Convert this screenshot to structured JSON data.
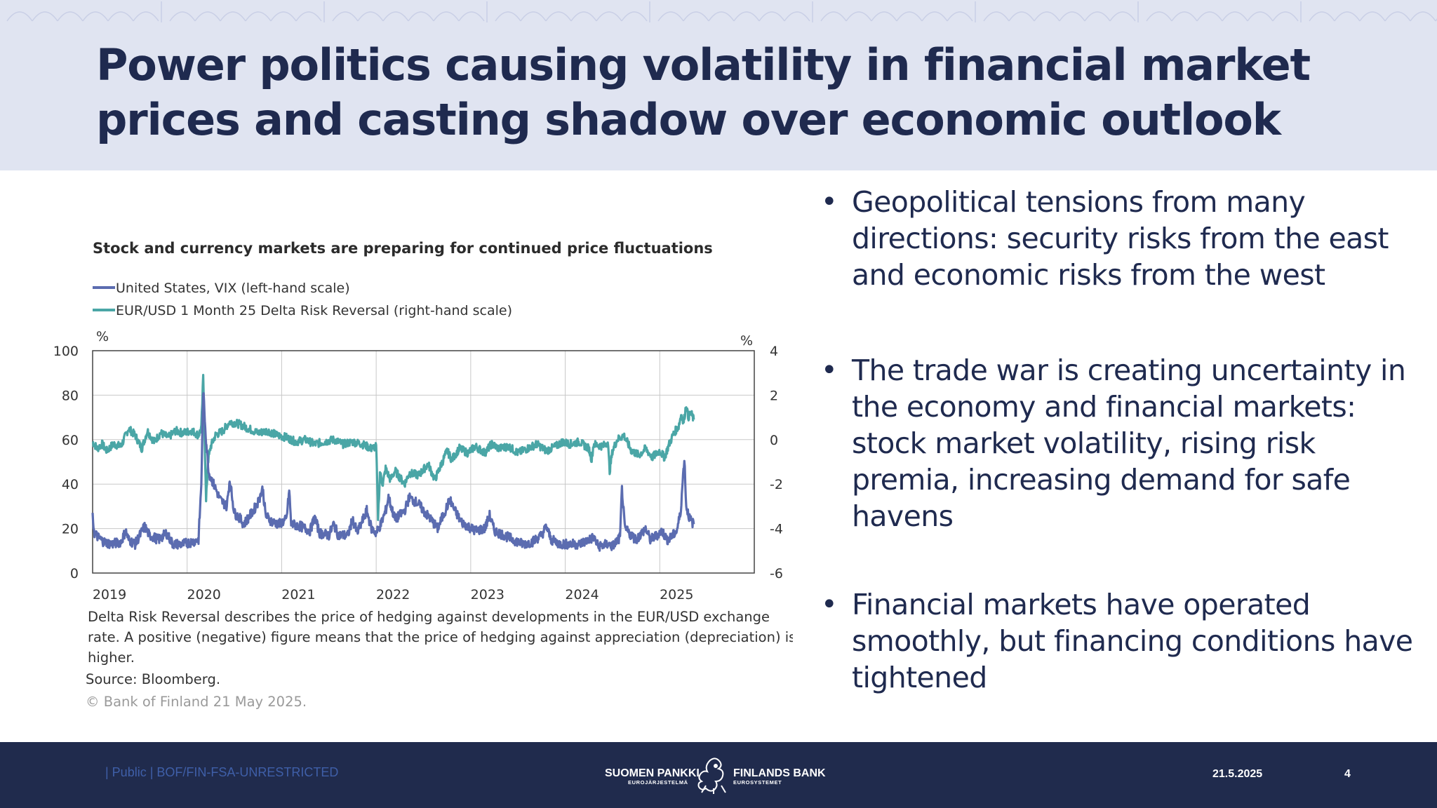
{
  "slide": {
    "title": "Power politics causing volatility in financial market prices and casting shadow over economic outlook",
    "bullets": [
      "Geopolitical tensions from many directions: security risks from the east and economic risks from the west",
      "The trade war is creating uncertainty in the economy and financial markets: stock market volatility, rising risk premia, increasing demand for safe havens",
      "Financial markets have operated smoothly, but financing conditions have tightened"
    ],
    "bullet_glyph": "•"
  },
  "chart_data": {
    "type": "line",
    "title": "Stock and currency markets are preparing for continued price fluctuations",
    "left_unit": "%",
    "right_unit": "%",
    "left_ylim": [
      0,
      100
    ],
    "right_ylim": [
      -6,
      4
    ],
    "left_ticks": [
      "100",
      "80",
      "60",
      "40",
      "20",
      "0"
    ],
    "right_ticks": [
      "4",
      "2",
      "0",
      "-2",
      "-4",
      "-6"
    ],
    "x_ticks": [
      "2019",
      "2020",
      "2021",
      "2022",
      "2023",
      "2024",
      "2025"
    ],
    "xlim": [
      2019,
      2026
    ],
    "grid": true,
    "series": [
      {
        "name": "United States, VIX (left-hand scale)",
        "axis": "left",
        "color": "#5b6cb0",
        "points": [
          [
            2019.0,
            25
          ],
          [
            2019.02,
            18
          ],
          [
            2019.06,
            16
          ],
          [
            2019.12,
            14
          ],
          [
            2019.2,
            13
          ],
          [
            2019.3,
            14
          ],
          [
            2019.35,
            19
          ],
          [
            2019.38,
            15
          ],
          [
            2019.45,
            13
          ],
          [
            2019.55,
            21
          ],
          [
            2019.6,
            17
          ],
          [
            2019.7,
            15
          ],
          [
            2019.78,
            18
          ],
          [
            2019.85,
            13
          ],
          [
            2019.95,
            13
          ],
          [
            2020.05,
            14
          ],
          [
            2020.12,
            15
          ],
          [
            2020.15,
            40
          ],
          [
            2020.17,
            82
          ],
          [
            2020.2,
            60
          ],
          [
            2020.23,
            45
          ],
          [
            2020.28,
            40
          ],
          [
            2020.35,
            33
          ],
          [
            2020.42,
            30
          ],
          [
            2020.45,
            42
          ],
          [
            2020.5,
            27
          ],
          [
            2020.55,
            25
          ],
          [
            2020.6,
            22
          ],
          [
            2020.65,
            25
          ],
          [
            2020.7,
            28
          ],
          [
            2020.75,
            32
          ],
          [
            2020.8,
            38
          ],
          [
            2020.83,
            26
          ],
          [
            2020.9,
            23
          ],
          [
            2020.97,
            22
          ],
          [
            2021.05,
            24
          ],
          [
            2021.08,
            37
          ],
          [
            2021.1,
            22
          ],
          [
            2021.2,
            21
          ],
          [
            2021.3,
            19
          ],
          [
            2021.35,
            25
          ],
          [
            2021.4,
            18
          ],
          [
            2021.5,
            17
          ],
          [
            2021.55,
            22
          ],
          [
            2021.6,
            17
          ],
          [
            2021.7,
            17
          ],
          [
            2021.75,
            24
          ],
          [
            2021.8,
            18
          ],
          [
            2021.9,
            28
          ],
          [
            2021.95,
            20
          ],
          [
            2022.0,
            18
          ],
          [
            2022.05,
            22
          ],
          [
            2022.1,
            28
          ],
          [
            2022.13,
            34
          ],
          [
            2022.2,
            24
          ],
          [
            2022.3,
            28
          ],
          [
            2022.35,
            34
          ],
          [
            2022.45,
            31
          ],
          [
            2022.5,
            28
          ],
          [
            2022.6,
            23
          ],
          [
            2022.65,
            20
          ],
          [
            2022.7,
            25
          ],
          [
            2022.78,
            33
          ],
          [
            2022.82,
            29
          ],
          [
            2022.9,
            23
          ],
          [
            2022.97,
            21
          ],
          [
            2023.05,
            19
          ],
          [
            2023.15,
            20
          ],
          [
            2023.2,
            26
          ],
          [
            2023.25,
            19
          ],
          [
            2023.35,
            17
          ],
          [
            2023.45,
            15
          ],
          [
            2023.55,
            13
          ],
          [
            2023.65,
            14
          ],
          [
            2023.75,
            17
          ],
          [
            2023.8,
            21
          ],
          [
            2023.85,
            15
          ],
          [
            2023.95,
            13
          ],
          [
            2024.05,
            13
          ],
          [
            2024.15,
            13
          ],
          [
            2024.25,
            15
          ],
          [
            2024.3,
            16
          ],
          [
            2024.35,
            12
          ],
          [
            2024.45,
            13
          ],
          [
            2024.5,
            12
          ],
          [
            2024.58,
            16
          ],
          [
            2024.6,
            38
          ],
          [
            2024.63,
            20
          ],
          [
            2024.7,
            17
          ],
          [
            2024.75,
            15
          ],
          [
            2024.85,
            20
          ],
          [
            2024.9,
            15
          ],
          [
            2024.97,
            17
          ],
          [
            2025.02,
            19
          ],
          [
            2025.08,
            15
          ],
          [
            2025.12,
            16
          ],
          [
            2025.18,
            19
          ],
          [
            2025.22,
            27
          ],
          [
            2025.26,
            52
          ],
          [
            2025.28,
            30
          ],
          [
            2025.32,
            24
          ],
          [
            2025.36,
            22
          ]
        ]
      },
      {
        "name": "EUR/USD 1 Month 25 Delta Risk Reversal (right-hand scale)",
        "axis": "right",
        "color": "#4aa6a6",
        "points": [
          [
            2019.0,
            -0.1
          ],
          [
            2019.05,
            -0.4
          ],
          [
            2019.1,
            -0.2
          ],
          [
            2019.15,
            -0.5
          ],
          [
            2019.22,
            -0.2
          ],
          [
            2019.3,
            -0.3
          ],
          [
            2019.38,
            0.5
          ],
          [
            2019.45,
            0.2
          ],
          [
            2019.52,
            -0.4
          ],
          [
            2019.58,
            0.4
          ],
          [
            2019.65,
            -0.1
          ],
          [
            2019.72,
            0.3
          ],
          [
            2019.8,
            0.1
          ],
          [
            2019.88,
            0.4
          ],
          [
            2019.95,
            0.3
          ],
          [
            2020.05,
            0.4
          ],
          [
            2020.12,
            0.2
          ],
          [
            2020.15,
            0.5
          ],
          [
            2020.17,
            2.8
          ],
          [
            2020.18,
            1.2
          ],
          [
            2020.2,
            -2.8
          ],
          [
            2020.22,
            -1.0
          ],
          [
            2020.25,
            -0.3
          ],
          [
            2020.3,
            0.2
          ],
          [
            2020.38,
            0.4
          ],
          [
            2020.45,
            0.8
          ],
          [
            2020.55,
            0.7
          ],
          [
            2020.65,
            0.5
          ],
          [
            2020.75,
            0.3
          ],
          [
            2020.85,
            0.4
          ],
          [
            2020.95,
            0.2
          ],
          [
            2021.05,
            0.1
          ],
          [
            2021.15,
            -0.1
          ],
          [
            2021.25,
            0.0
          ],
          [
            2021.35,
            -0.2
          ],
          [
            2021.45,
            -0.1
          ],
          [
            2021.55,
            0.0
          ],
          [
            2021.65,
            -0.2
          ],
          [
            2021.75,
            -0.1
          ],
          [
            2021.85,
            -0.2
          ],
          [
            2021.95,
            -0.4
          ],
          [
            2022.0,
            -0.3
          ],
          [
            2022.02,
            -3.5
          ],
          [
            2022.04,
            -1.5
          ],
          [
            2022.07,
            -2.0
          ],
          [
            2022.1,
            -1.3
          ],
          [
            2022.15,
            -1.8
          ],
          [
            2022.2,
            -1.4
          ],
          [
            2022.3,
            -2.0
          ],
          [
            2022.35,
            -1.5
          ],
          [
            2022.45,
            -1.6
          ],
          [
            2022.55,
            -1.1
          ],
          [
            2022.62,
            -1.8
          ],
          [
            2022.7,
            -1.0
          ],
          [
            2022.75,
            -0.5
          ],
          [
            2022.8,
            -0.9
          ],
          [
            2022.88,
            -0.4
          ],
          [
            2022.97,
            -0.6
          ],
          [
            2023.05,
            -0.3
          ],
          [
            2023.15,
            -0.6
          ],
          [
            2023.22,
            -0.2
          ],
          [
            2023.3,
            -0.4
          ],
          [
            2023.4,
            -0.3
          ],
          [
            2023.5,
            -0.6
          ],
          [
            2023.6,
            -0.4
          ],
          [
            2023.7,
            -0.2
          ],
          [
            2023.8,
            -0.5
          ],
          [
            2023.9,
            -0.3
          ],
          [
            2023.97,
            -0.1
          ],
          [
            2024.05,
            -0.2
          ],
          [
            2024.15,
            -0.1
          ],
          [
            2024.25,
            -0.4
          ],
          [
            2024.28,
            -0.9
          ],
          [
            2024.3,
            -0.2
          ],
          [
            2024.4,
            -0.3
          ],
          [
            2024.45,
            -0.1
          ],
          [
            2024.47,
            -1.4
          ],
          [
            2024.5,
            -0.5
          ],
          [
            2024.55,
            0.0
          ],
          [
            2024.62,
            0.2
          ],
          [
            2024.7,
            -0.5
          ],
          [
            2024.78,
            -0.7
          ],
          [
            2024.85,
            -0.4
          ],
          [
            2024.92,
            -0.8
          ],
          [
            2025.0,
            -0.5
          ],
          [
            2025.05,
            -0.8
          ],
          [
            2025.1,
            -0.2
          ],
          [
            2025.15,
            0.3
          ],
          [
            2025.2,
            0.6
          ],
          [
            2025.23,
            1.2
          ],
          [
            2025.25,
            0.7
          ],
          [
            2025.28,
            1.6
          ],
          [
            2025.3,
            1.0
          ],
          [
            2025.33,
            1.2
          ],
          [
            2025.36,
            0.9
          ]
        ]
      }
    ],
    "notes": [
      "Delta Risk Reversal describes the price of hedging against developments  in the EUR/USD exchange",
      "rate. A positive (negative) figure means that the price of hedging against appreciation (depreciation) is",
      "higher."
    ],
    "source": "Source: Bloomberg.",
    "copyright": "© Bank of Finland 21 May 2025."
  },
  "footer": {
    "classification": "| Public | BOF/FIN-FSA-UNRESTRICTED",
    "logo_left": "SUOMEN PANKKI",
    "logo_left_sub": "EUROJÄRJESTELMÄ",
    "logo_right": "FINLANDS BANK",
    "logo_right_sub": "EUROSYSTEMET",
    "date": "21.5.2025",
    "page": "4"
  },
  "colors": {
    "header_bg": "#e0e4f1",
    "title": "#1f2a4f",
    "footer_bg": "#202b4d",
    "vix": "#5b6cb0",
    "risk_reversal": "#4aa6a6"
  }
}
